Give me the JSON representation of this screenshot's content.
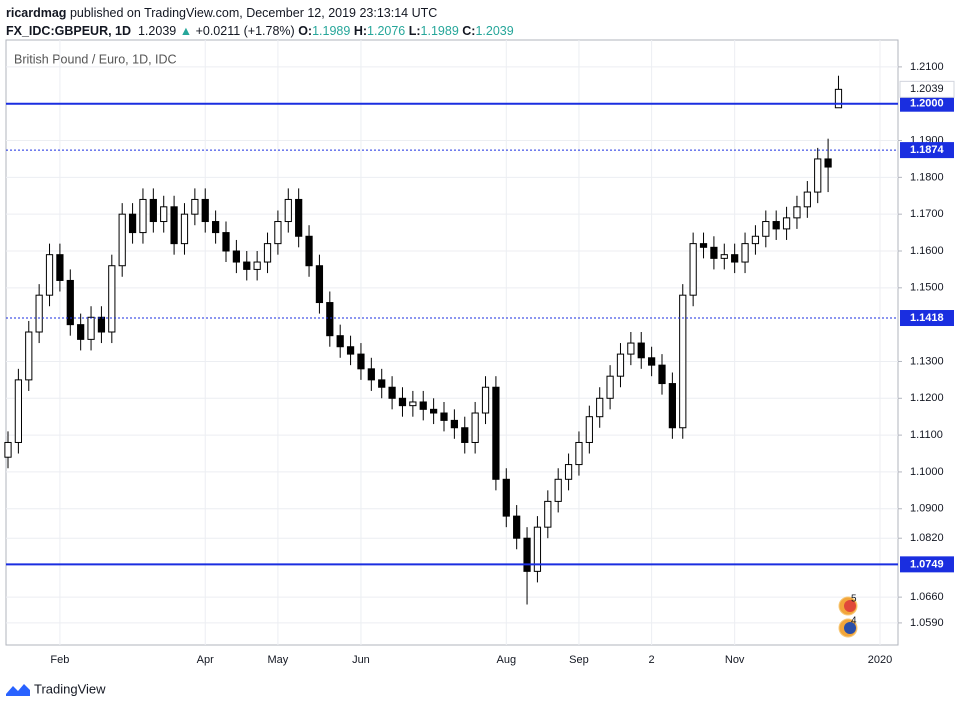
{
  "header": {
    "publisher": "ricardmag",
    "published": "published on TradingView.com, December 12, 2019 23:13:14 UTC",
    "symbol": "FX_IDC:GBPEUR, 1D",
    "last": "1.2039",
    "arrow": "▲",
    "change": "+0.0211 (+1.78%)",
    "o_label": "O:",
    "o": "1.1989",
    "h_label": "H:",
    "h": "1.2076",
    "l_label": "L:",
    "l": "1.1989",
    "c_label": "C:",
    "c": "1.2039"
  },
  "footer": {
    "brand": "TradingView"
  },
  "chart_data": {
    "type": "candlestick",
    "title": "British Pound / Euro, 1D, IDC",
    "categories": [
      null,
      null,
      null,
      null,
      null,
      "Feb",
      null,
      null,
      null,
      null,
      null,
      null,
      null,
      null,
      null,
      null,
      null,
      null,
      null,
      "Apr",
      null,
      null,
      null,
      null,
      null,
      null,
      "May",
      null,
      null,
      null,
      null,
      null,
      null,
      null,
      "Jun",
      null,
      null,
      null,
      null,
      null,
      null,
      null,
      null,
      null,
      null,
      null,
      null,
      null,
      "Aug",
      null,
      null,
      null,
      null,
      null,
      null,
      "Sep",
      null,
      null,
      null,
      null,
      null,
      null,
      "2",
      null,
      null,
      null,
      null,
      null,
      null,
      null,
      "Nov",
      null,
      null,
      null,
      null,
      null,
      null,
      null,
      null,
      null,
      null,
      null,
      null,
      null,
      "2020",
      null
    ],
    "open": [
      1.104,
      1.108,
      1.125,
      1.138,
      1.148,
      1.159,
      1.152,
      1.14,
      1.136,
      1.142,
      1.138,
      1.156,
      1.17,
      1.165,
      1.174,
      1.168,
      1.172,
      1.162,
      1.17,
      1.174,
      1.168,
      1.165,
      1.16,
      1.157,
      1.155,
      1.157,
      1.162,
      1.168,
      1.174,
      1.164,
      1.156,
      1.146,
      1.137,
      1.134,
      1.132,
      1.128,
      1.125,
      1.123,
      1.12,
      1.118,
      1.119,
      1.117,
      1.116,
      1.114,
      1.112,
      1.108,
      1.116,
      1.123,
      1.098,
      1.088,
      1.082,
      1.073,
      1.085,
      1.092,
      1.098,
      1.102,
      1.108,
      1.115,
      1.12,
      1.126,
      1.132,
      1.135,
      1.131,
      1.129,
      1.124,
      1.112,
      1.148,
      1.162,
      1.161,
      1.158,
      1.159,
      1.157,
      1.162,
      1.164,
      1.168,
      1.166,
      1.169,
      1.172,
      1.176,
      1.185,
      1.1989,
      null,
      null,
      null,
      null,
      null
    ],
    "high": [
      1.111,
      1.128,
      1.141,
      1.151,
      1.162,
      1.162,
      1.155,
      1.143,
      1.145,
      1.145,
      1.159,
      1.173,
      1.173,
      1.177,
      1.177,
      1.175,
      1.175,
      1.173,
      1.177,
      1.177,
      1.171,
      1.168,
      1.163,
      1.16,
      1.16,
      1.165,
      1.171,
      1.177,
      1.177,
      1.167,
      1.159,
      1.149,
      1.14,
      1.137,
      1.135,
      1.131,
      1.128,
      1.126,
      1.123,
      1.122,
      1.122,
      1.12,
      1.119,
      1.117,
      1.115,
      1.119,
      1.126,
      1.126,
      1.101,
      1.091,
      1.085,
      1.088,
      1.095,
      1.101,
      1.105,
      1.111,
      1.118,
      1.123,
      1.129,
      1.135,
      1.138,
      1.138,
      1.134,
      1.132,
      1.127,
      1.151,
      1.165,
      1.165,
      1.164,
      1.162,
      1.162,
      1.165,
      1.167,
      1.171,
      1.171,
      1.172,
      1.175,
      1.179,
      1.188,
      1.1905,
      1.2076,
      null,
      null,
      null,
      null,
      null
    ],
    "low": [
      1.101,
      1.105,
      1.122,
      1.135,
      1.145,
      1.149,
      1.137,
      1.133,
      1.133,
      1.135,
      1.135,
      1.153,
      1.162,
      1.162,
      1.165,
      1.165,
      1.159,
      1.159,
      1.167,
      1.165,
      1.162,
      1.157,
      1.154,
      1.152,
      1.152,
      1.154,
      1.159,
      1.165,
      1.161,
      1.153,
      1.143,
      1.134,
      1.131,
      1.129,
      1.125,
      1.122,
      1.12,
      1.117,
      1.115,
      1.115,
      1.114,
      1.113,
      1.111,
      1.109,
      1.105,
      1.105,
      1.113,
      1.095,
      1.085,
      1.079,
      1.064,
      1.07,
      1.082,
      1.089,
      1.095,
      1.099,
      1.105,
      1.112,
      1.117,
      1.123,
      1.129,
      1.128,
      1.126,
      1.121,
      1.109,
      1.109,
      1.145,
      1.158,
      1.155,
      1.155,
      1.154,
      1.154,
      1.159,
      1.161,
      1.163,
      1.163,
      1.166,
      1.169,
      1.173,
      1.176,
      1.1989,
      null,
      null,
      null,
      null,
      null
    ],
    "close": [
      1.108,
      1.125,
      1.138,
      1.148,
      1.159,
      1.152,
      1.14,
      1.136,
      1.142,
      1.138,
      1.156,
      1.17,
      1.165,
      1.174,
      1.168,
      1.172,
      1.162,
      1.17,
      1.174,
      1.168,
      1.165,
      1.16,
      1.157,
      1.155,
      1.157,
      1.162,
      1.168,
      1.174,
      1.164,
      1.156,
      1.146,
      1.137,
      1.134,
      1.132,
      1.128,
      1.125,
      1.123,
      1.12,
      1.118,
      1.119,
      1.117,
      1.116,
      1.114,
      1.112,
      1.108,
      1.116,
      1.123,
      1.098,
      1.088,
      1.082,
      1.073,
      1.085,
      1.092,
      1.098,
      1.102,
      1.108,
      1.115,
      1.12,
      1.126,
      1.132,
      1.135,
      1.131,
      1.129,
      1.124,
      1.112,
      1.148,
      1.162,
      1.161,
      1.158,
      1.159,
      1.157,
      1.162,
      1.164,
      1.168,
      1.166,
      1.169,
      1.172,
      1.176,
      1.185,
      1.1828,
      1.2039,
      null,
      null,
      null,
      null,
      null
    ],
    "up_color": "#ffffff",
    "down_color": "#000000",
    "wick_color": "#000000",
    "ylim": [
      1.053,
      1.2173
    ],
    "yticks": [
      {
        "value": 1.21,
        "label": "1.2100"
      },
      {
        "value": 1.19,
        "label": "1.1900"
      },
      {
        "value": 1.18,
        "label": "1.1800"
      },
      {
        "value": 1.17,
        "label": "1.1700"
      },
      {
        "value": 1.16,
        "label": "1.1600"
      },
      {
        "value": 1.15,
        "label": "1.1500"
      },
      {
        "value": 1.13,
        "label": "1.1300"
      },
      {
        "value": 1.12,
        "label": "1.1200"
      },
      {
        "value": 1.11,
        "label": "1.1100"
      },
      {
        "value": 1.1,
        "label": "1.1000"
      },
      {
        "value": 1.09,
        "label": "1.0900"
      },
      {
        "value": 1.082,
        "label": "1.0820"
      },
      {
        "value": 1.066,
        "label": "1.0660"
      },
      {
        "value": 1.059,
        "label": "1.0590"
      }
    ],
    "grid": true,
    "levels": [
      {
        "value": 1.2,
        "label": "1.2000",
        "style": "solid",
        "color": "#1a2ee0"
      },
      {
        "value": 1.1874,
        "label": "1.1874",
        "style": "dotted",
        "color": "#1a2ee0"
      },
      {
        "value": 1.1418,
        "label": "1.1418",
        "style": "dotted",
        "color": "#1a2ee0"
      },
      {
        "value": 1.0749,
        "label": "1.0749",
        "style": "solid",
        "color": "#1a2ee0"
      }
    ],
    "last_price": {
      "value": 1.2039,
      "label": "1.2039"
    },
    "events": [
      "5",
      "4"
    ]
  }
}
